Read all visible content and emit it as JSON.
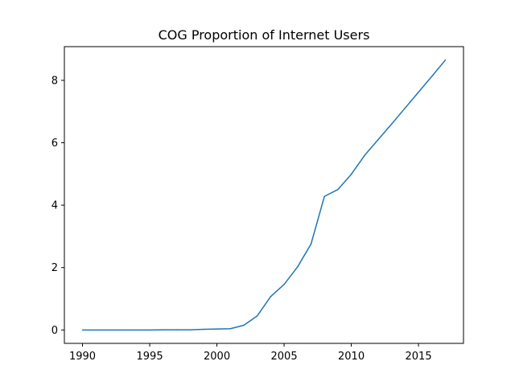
{
  "chart_data": {
    "type": "line",
    "title": "COG Proportion of Internet Users",
    "xlabel": "",
    "ylabel": "",
    "xlim": [
      1988.65,
      2018.35
    ],
    "ylim": [
      -0.43,
      9.08
    ],
    "x_ticks": [
      1990,
      1995,
      2000,
      2005,
      2010,
      2015
    ],
    "y_ticks": [
      0,
      2,
      4,
      6,
      8
    ],
    "grid": false,
    "legend": "none",
    "series": [
      {
        "color": "#1f77b4",
        "x": [
          1990,
          1991,
          1992,
          1993,
          1994,
          1995,
          1996,
          1997,
          1998,
          1999,
          2000,
          2001,
          2002,
          2003,
          2004,
          2005,
          2006,
          2007,
          2008,
          2009,
          2010,
          2011,
          2012,
          2013,
          2014,
          2015,
          2016,
          2017
        ],
        "y": [
          0,
          0,
          0,
          0,
          0,
          0,
          0.005,
          0.005,
          0.005,
          0.02,
          0.03,
          0.04,
          0.15,
          0.45,
          1.07,
          1.46,
          2.02,
          2.75,
          4.28,
          4.5,
          4.99,
          5.6,
          6.1,
          6.6,
          7.11,
          7.62,
          8.13,
          8.65
        ]
      }
    ]
  }
}
